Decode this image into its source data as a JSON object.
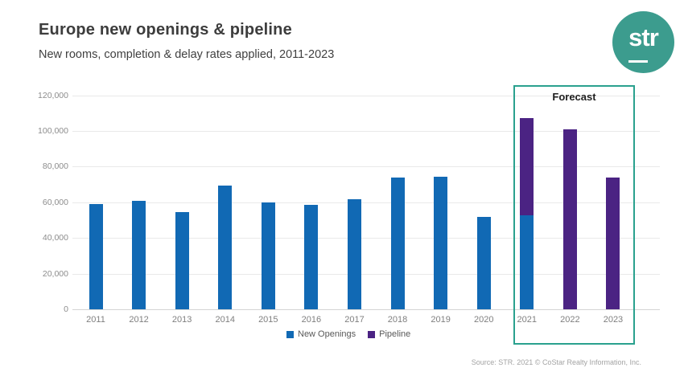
{
  "header": {
    "title": "Europe new openings & pipeline",
    "subtitle": "New rooms, completion & delay rates applied, 2011-2023"
  },
  "logo": {
    "text": "str",
    "bg_color": "#3c9c8e"
  },
  "chart_data": {
    "type": "bar",
    "stacked": true,
    "title": "Europe new openings & pipeline",
    "subtitle": "New rooms, completion & delay rates applied, 2011-2023",
    "xlabel": "",
    "ylabel": "New rooms",
    "ylim": [
      0,
      120000
    ],
    "grid": true,
    "legend_position": "bottom",
    "categories": [
      "2011",
      "2012",
      "2013",
      "2014",
      "2015",
      "2016",
      "2017",
      "2018",
      "2019",
      "2020",
      "2021",
      "2022",
      "2023"
    ],
    "series": [
      {
        "name": "New Openings",
        "color": "#1169b4",
        "values": [
          59000,
          61000,
          54500,
          69500,
          60000,
          58500,
          61500,
          74000,
          74500,
          52000,
          52500,
          0,
          0
        ]
      },
      {
        "name": "Pipeline",
        "color": "#4b2383",
        "values": [
          0,
          0,
          0,
          0,
          0,
          0,
          0,
          0,
          0,
          0,
          54500,
          101000,
          74000
        ]
      }
    ],
    "y_ticks": [
      {
        "value": 0,
        "label": "0"
      },
      {
        "value": 20000,
        "label": "20,000"
      },
      {
        "value": 40000,
        "label": "40,000"
      },
      {
        "value": 60000,
        "label": "60,000"
      },
      {
        "value": 80000,
        "label": "80,000"
      },
      {
        "value": 100000,
        "label": "100,000"
      },
      {
        "value": 120000,
        "label": "120,000"
      }
    ],
    "forecast_annotation": {
      "label": "Forecast",
      "categories": [
        "2021",
        "2022",
        "2023"
      ],
      "border_color": "#2aa18e"
    }
  },
  "footer": {
    "source": "Source: STR. 2021 © CoStar Realty Information, Inc."
  }
}
